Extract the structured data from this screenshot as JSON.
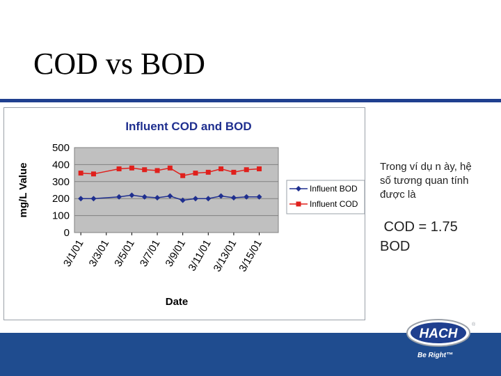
{
  "slide": {
    "title": "COD vs BOD",
    "note_lines": [
      "Trong ví dụ n ày, hệ",
      "số tương quan tính",
      "được là"
    ],
    "ratio_lines": [
      " COD = 1.75",
      "BOD"
    ],
    "logo_text": "HACH",
    "logo_tagline": "Be Right™"
  },
  "colors": {
    "accent": "#1f3f8f",
    "footer": "#1f4c8f",
    "bod_series": "#1f2f8f",
    "cod_series": "#e0201c",
    "plot_bg": "#c0c0c0"
  },
  "chart_data": {
    "type": "line",
    "title": "Influent COD and BOD",
    "xlabel": "Date",
    "ylabel": "mg/L Value",
    "ylim": [
      0,
      500
    ],
    "yticks": [
      0,
      100,
      200,
      300,
      400,
      500
    ],
    "grid": true,
    "legend_position": "right",
    "x": [
      "3/1/01",
      "3/2/01",
      "3/3/01",
      "3/4/01",
      "3/5/01",
      "3/6/01",
      "3/7/01",
      "3/8/01",
      "3/9/01",
      "3/10/01",
      "3/11/01",
      "3/12/01",
      "3/13/01",
      "3/14/01",
      "3/15/01",
      "3/16/01"
    ],
    "x_tick_labels": [
      "3/1/01",
      "3/3/01",
      "3/5/01",
      "3/7/01",
      "3/9/01",
      "3/11/01",
      "3/13/01",
      "3/15/01"
    ],
    "series": [
      {
        "name": "Influent BOD",
        "marker": "diamond",
        "values": [
          200,
          200,
          null,
          210,
          220,
          210,
          205,
          215,
          190,
          200,
          200,
          215,
          205,
          210,
          210,
          null
        ]
      },
      {
        "name": "Influent COD",
        "marker": "square",
        "values": [
          350,
          345,
          null,
          375,
          380,
          370,
          365,
          380,
          335,
          350,
          355,
          375,
          355,
          370,
          375,
          null
        ]
      }
    ]
  }
}
